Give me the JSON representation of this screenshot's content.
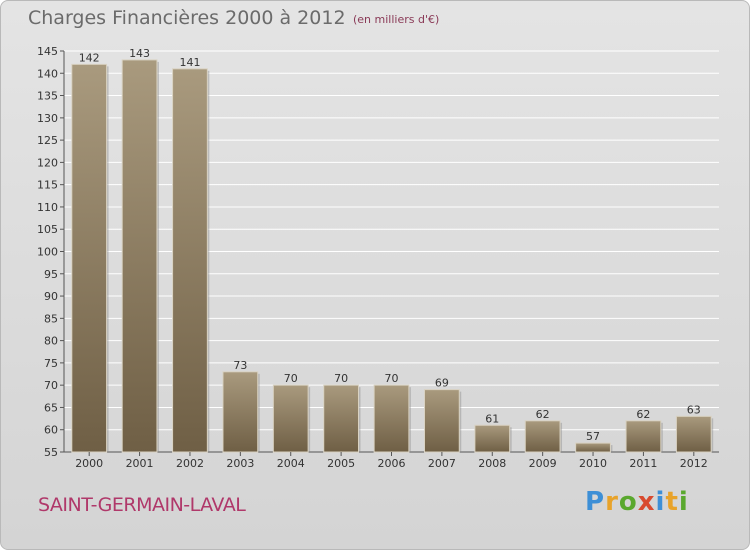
{
  "title": "Charges Financières 2000 à 2012",
  "subtitle": "(en milliers d'€)",
  "commune": "SAINT-GERMAIN-LAVAL",
  "logo": {
    "text": "Proxiti",
    "letters": [
      "P",
      "r",
      "o",
      "x",
      "i",
      "t",
      "i"
    ],
    "colors": [
      "#3d8fd6",
      "#e8a32a",
      "#5aa82e",
      "#d84a2e",
      "#3d8fd6",
      "#e8a32a",
      "#5aa82e"
    ]
  },
  "colors": {
    "bar_light": "#a99a7e",
    "bar_dark": "#6f5f45",
    "grid": "#ffffff",
    "text": "#333333",
    "title": "#6b6b6b",
    "accent": "#b0386a"
  },
  "chart_data": {
    "type": "bar",
    "categories": [
      "2000",
      "2001",
      "2002",
      "2003",
      "2004",
      "2005",
      "2006",
      "2007",
      "2008",
      "2009",
      "2010",
      "2011",
      "2012"
    ],
    "values": [
      142,
      143,
      141,
      73,
      70,
      70,
      70,
      69,
      61,
      62,
      57,
      62,
      63
    ],
    "title": "Charges Financières 2000 à 2012",
    "ylim": [
      55,
      145
    ],
    "yticks": [
      55,
      60,
      65,
      70,
      75,
      80,
      85,
      90,
      95,
      100,
      105,
      110,
      115,
      120,
      125,
      130,
      135,
      140,
      145
    ],
    "grid": true,
    "data_labels": true
  }
}
